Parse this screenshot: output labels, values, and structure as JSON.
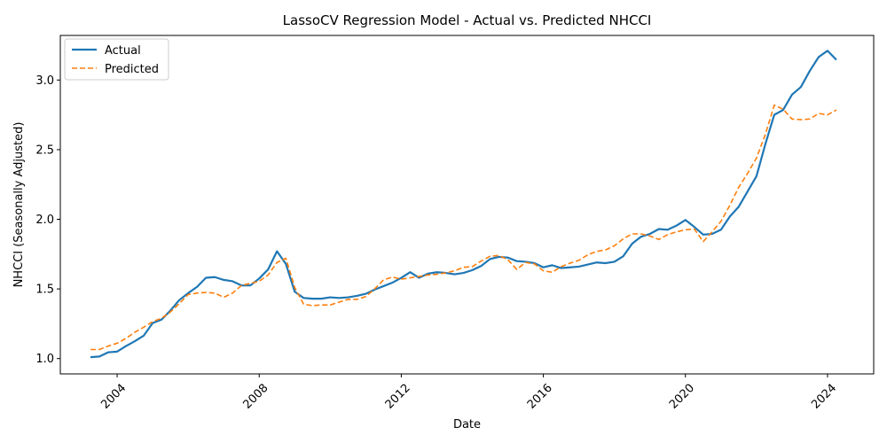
{
  "chart_data": {
    "type": "line",
    "title": "LassoCV Regression Model - Actual vs. Predicted NHCCI",
    "xlabel": "Date",
    "ylabel": "NHCCI (Seasonally Adjusted)",
    "xlim": [
      2002.4,
      2025.3
    ],
    "ylim": [
      0.89,
      3.32
    ],
    "x_ticks": [
      2004,
      2008,
      2012,
      2016,
      2020,
      2024
    ],
    "y_ticks": [
      1.0,
      1.5,
      2.0,
      2.5,
      3.0
    ],
    "y_tick_labels": [
      "1.0",
      "1.5",
      "2.0",
      "2.5",
      "3.0"
    ],
    "grid": false,
    "legend_position": "top-left",
    "x": [
      2003.25,
      2003.5,
      2003.75,
      2004.0,
      2004.25,
      2004.5,
      2004.75,
      2005.0,
      2005.25,
      2005.5,
      2005.75,
      2006.0,
      2006.25,
      2006.5,
      2006.75,
      2007.0,
      2007.25,
      2007.5,
      2007.75,
      2008.0,
      2008.25,
      2008.5,
      2008.75,
      2009.0,
      2009.25,
      2009.5,
      2009.75,
      2010.0,
      2010.25,
      2010.5,
      2010.75,
      2011.0,
      2011.25,
      2011.5,
      2011.75,
      2012.0,
      2012.25,
      2012.5,
      2012.75,
      2013.0,
      2013.25,
      2013.5,
      2013.75,
      2014.0,
      2014.25,
      2014.5,
      2014.75,
      2015.0,
      2015.25,
      2015.5,
      2015.75,
      2016.0,
      2016.25,
      2016.5,
      2016.75,
      2017.0,
      2017.25,
      2017.5,
      2017.75,
      2018.0,
      2018.25,
      2018.5,
      2018.75,
      2019.0,
      2019.25,
      2019.5,
      2019.75,
      2020.0,
      2020.25,
      2020.5,
      2020.75,
      2021.0,
      2021.25,
      2021.5,
      2021.75,
      2022.0,
      2022.25,
      2022.5,
      2022.75,
      2023.0,
      2023.25,
      2023.5,
      2023.75,
      2024.0,
      2024.25
    ],
    "series": [
      {
        "name": "Actual",
        "color": "#1f77b4",
        "style": "solid",
        "values": [
          1.01,
          1.015,
          1.045,
          1.05,
          1.09,
          1.125,
          1.165,
          1.255,
          1.28,
          1.345,
          1.42,
          1.47,
          1.515,
          1.58,
          1.585,
          1.565,
          1.555,
          1.525,
          1.525,
          1.575,
          1.64,
          1.77,
          1.68,
          1.48,
          1.435,
          1.43,
          1.43,
          1.44,
          1.435,
          1.44,
          1.45,
          1.465,
          1.495,
          1.52,
          1.545,
          1.58,
          1.62,
          1.58,
          1.61,
          1.62,
          1.615,
          1.605,
          1.615,
          1.635,
          1.665,
          1.715,
          1.73,
          1.725,
          1.7,
          1.695,
          1.685,
          1.655,
          1.67,
          1.65,
          1.655,
          1.66,
          1.675,
          1.69,
          1.685,
          1.695,
          1.735,
          1.825,
          1.875,
          1.895,
          1.93,
          1.925,
          1.955,
          1.995,
          1.945,
          1.89,
          1.895,
          1.925,
          2.02,
          2.09,
          2.2,
          2.31,
          2.54,
          2.75,
          2.785,
          2.895,
          2.95,
          3.065,
          3.165,
          3.21,
          3.145
        ]
      },
      {
        "name": "Predicted",
        "color": "#ff7f0e",
        "style": "dashed",
        "values": [
          1.065,
          1.065,
          1.09,
          1.11,
          1.145,
          1.19,
          1.225,
          1.265,
          1.29,
          1.335,
          1.395,
          1.46,
          1.47,
          1.475,
          1.47,
          1.44,
          1.47,
          1.525,
          1.54,
          1.555,
          1.6,
          1.69,
          1.72,
          1.51,
          1.39,
          1.38,
          1.385,
          1.385,
          1.405,
          1.425,
          1.425,
          1.445,
          1.5,
          1.565,
          1.585,
          1.57,
          1.58,
          1.59,
          1.6,
          1.605,
          1.615,
          1.63,
          1.655,
          1.66,
          1.7,
          1.735,
          1.74,
          1.71,
          1.64,
          1.69,
          1.68,
          1.63,
          1.62,
          1.66,
          1.685,
          1.705,
          1.745,
          1.77,
          1.78,
          1.81,
          1.86,
          1.895,
          1.895,
          1.88,
          1.855,
          1.89,
          1.91,
          1.925,
          1.93,
          1.84,
          1.91,
          1.985,
          2.1,
          2.23,
          2.33,
          2.44,
          2.61,
          2.82,
          2.79,
          2.72,
          2.715,
          2.72,
          2.76,
          2.75,
          2.785
        ]
      }
    ]
  }
}
